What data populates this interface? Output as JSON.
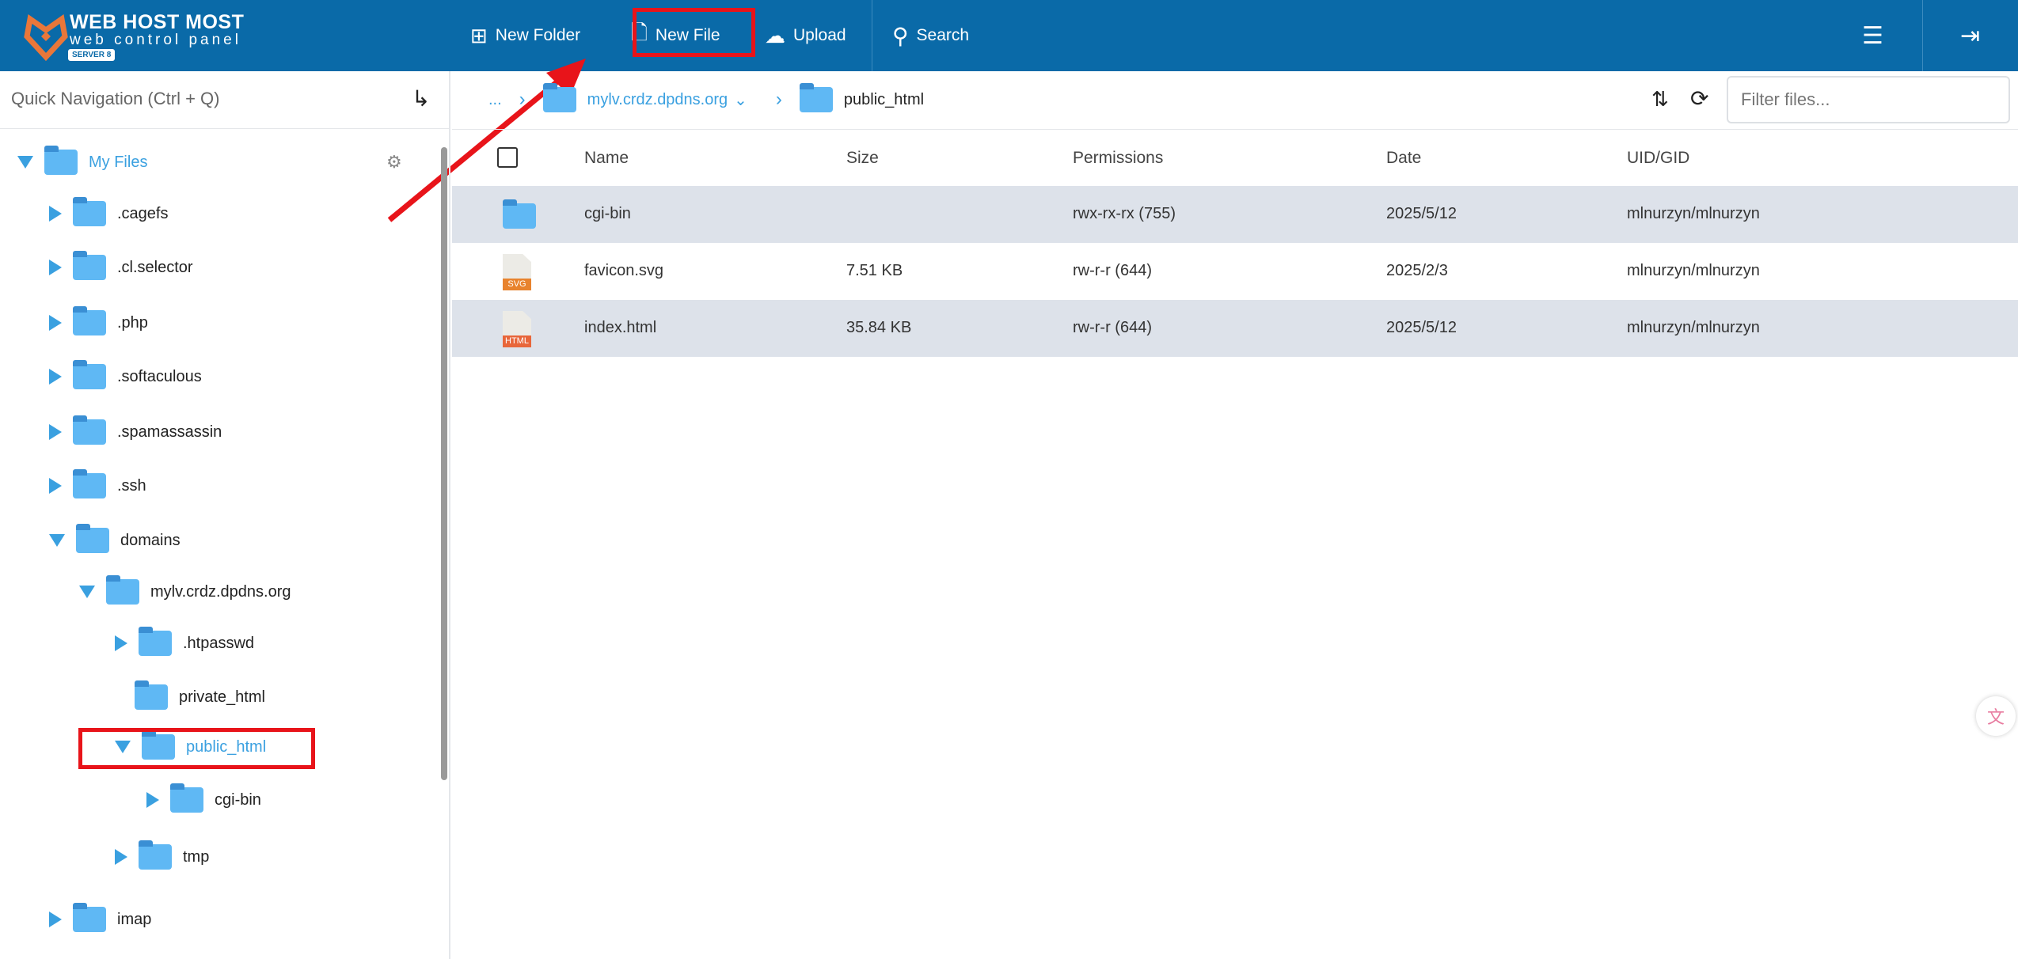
{
  "header": {
    "brand": "WEB HOST MOST",
    "subtitle": "web control panel",
    "server": "SERVER 8",
    "new_folder": "New Folder",
    "new_file": "New File",
    "upload": "Upload",
    "search": "Search"
  },
  "sidebar": {
    "quick_nav": "Quick Navigation (Ctrl + Q)",
    "root": "My Files",
    "items": [
      ".cagefs",
      ".cl.selector",
      ".php",
      ".softaculous",
      ".spamassassin",
      ".ssh",
      "domains",
      "mylv.crdz.dpdns.org",
      ".htpasswd",
      "private_html",
      "public_html",
      "cgi-bin",
      "tmp",
      "imap"
    ]
  },
  "breadcrumb": {
    "ellipsis": "...",
    "domain": "mylv.crdz.dpdns.org",
    "current": "public_html"
  },
  "filter": {
    "placeholder": "Filter files..."
  },
  "table": {
    "columns": [
      "Name",
      "Size",
      "Permissions",
      "Date",
      "UID/GID"
    ],
    "rows": [
      {
        "name": "cgi-bin",
        "type": "folder",
        "size": "",
        "perm": "rwx-rx-rx (755)",
        "date": "2025/5/12",
        "uid": "mlnurzyn/mlnurzyn"
      },
      {
        "name": "favicon.svg",
        "type": "SVG",
        "size": "7.51 KB",
        "perm": "rw-r-r (644)",
        "date": "2025/2/3",
        "uid": "mlnurzyn/mlnurzyn"
      },
      {
        "name": "index.html",
        "type": "HTML",
        "size": "35.84 KB",
        "perm": "rw-r-r (644)",
        "date": "2025/5/12",
        "uid": "mlnurzyn/mlnurzyn"
      }
    ]
  },
  "colors": {
    "header": "#0a6aa8",
    "accent": "#3aa0e0",
    "highlight": "#e8141a"
  }
}
